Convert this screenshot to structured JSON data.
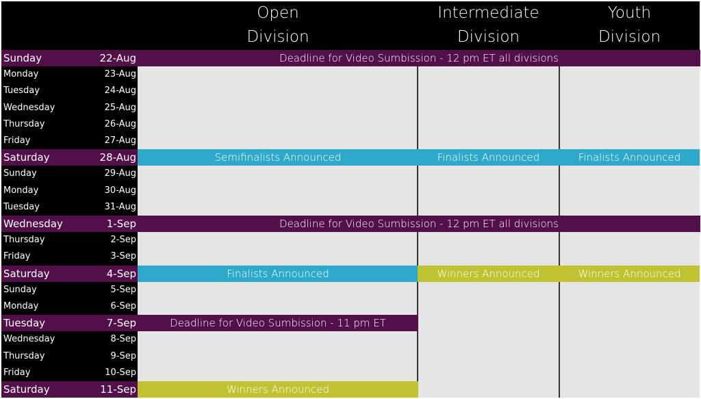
{
  "headers": [
    {
      "line1": "Open",
      "line2": "Division"
    },
    {
      "line1": "Intermediate",
      "line2": "Division"
    },
    {
      "line1": "Youth",
      "line2": "Division"
    }
  ],
  "colors": {
    "purple": "#520f4a",
    "blue": "#2fa9c9",
    "yellow": "#c0c232",
    "grey": "#e5e5e5"
  },
  "rows": [
    {
      "day": "Sunday",
      "date": "22-Aug",
      "highlight": true,
      "events": [
        {
          "label": "Deadline for Video Sumbission - 12 pm ET all divisions",
          "col": 0,
          "span": 3,
          "color": "purple"
        }
      ]
    },
    {
      "day": "Monday",
      "date": "23-Aug",
      "highlight": false,
      "events": []
    },
    {
      "day": "Tuesday",
      "date": "24-Aug",
      "highlight": false,
      "events": []
    },
    {
      "day": "Wednesday",
      "date": "25-Aug",
      "highlight": false,
      "events": []
    },
    {
      "day": "Thursday",
      "date": "26-Aug",
      "highlight": false,
      "events": []
    },
    {
      "day": "Friday",
      "date": "27-Aug",
      "highlight": false,
      "events": []
    },
    {
      "day": "Saturday",
      "date": "28-Aug",
      "highlight": true,
      "events": [
        {
          "label": "Semifinalists Announced",
          "col": 0,
          "span": 1,
          "color": "blue"
        },
        {
          "label": "Finalists Announced",
          "col": 1,
          "span": 1,
          "color": "blue"
        },
        {
          "label": "Finalists Announced",
          "col": 2,
          "span": 1,
          "color": "blue"
        }
      ]
    },
    {
      "day": "Sunday",
      "date": "29-Aug",
      "highlight": false,
      "events": []
    },
    {
      "day": "Monday",
      "date": "30-Aug",
      "highlight": false,
      "events": []
    },
    {
      "day": "Tuesday",
      "date": "31-Aug",
      "highlight": false,
      "events": []
    },
    {
      "day": "Wednesday",
      "date": "1-Sep",
      "highlight": true,
      "events": [
        {
          "label": "Deadline for Video Sumbission - 12 pm ET all divisions",
          "col": 0,
          "span": 3,
          "color": "purple"
        }
      ]
    },
    {
      "day": "Thursday",
      "date": "2-Sep",
      "highlight": false,
      "events": []
    },
    {
      "day": "Friday",
      "date": "3-Sep",
      "highlight": false,
      "events": []
    },
    {
      "day": "Saturday",
      "date": "4-Sep",
      "highlight": true,
      "events": [
        {
          "label": "Finalists Announced",
          "col": 0,
          "span": 1,
          "color": "blue"
        },
        {
          "label": "Winners Announced",
          "col": 1,
          "span": 1,
          "color": "yellow"
        },
        {
          "label": "Winners Announced",
          "col": 2,
          "span": 1,
          "color": "yellow"
        }
      ]
    },
    {
      "day": "Sunday",
      "date": "5-Sep",
      "highlight": false,
      "events": []
    },
    {
      "day": "Monday",
      "date": "6-Sep",
      "highlight": false,
      "events": []
    },
    {
      "day": "Tuesday",
      "date": "7-Sep",
      "highlight": true,
      "events": [
        {
          "label": "Deadline for Video Sumbission - 11 pm ET",
          "col": 0,
          "span": 1,
          "color": "purple"
        }
      ]
    },
    {
      "day": "Wednesday",
      "date": "8-Sep",
      "highlight": false,
      "events": []
    },
    {
      "day": "Thursday",
      "date": "9-Sep",
      "highlight": false,
      "events": []
    },
    {
      "day": "Friday",
      "date": "10-Sep",
      "highlight": false,
      "events": []
    },
    {
      "day": "Saturday",
      "date": "11-Sep",
      "highlight": true,
      "events": [
        {
          "label": "Winners Announced",
          "col": 0,
          "span": 1,
          "color": "yellow"
        }
      ]
    }
  ]
}
